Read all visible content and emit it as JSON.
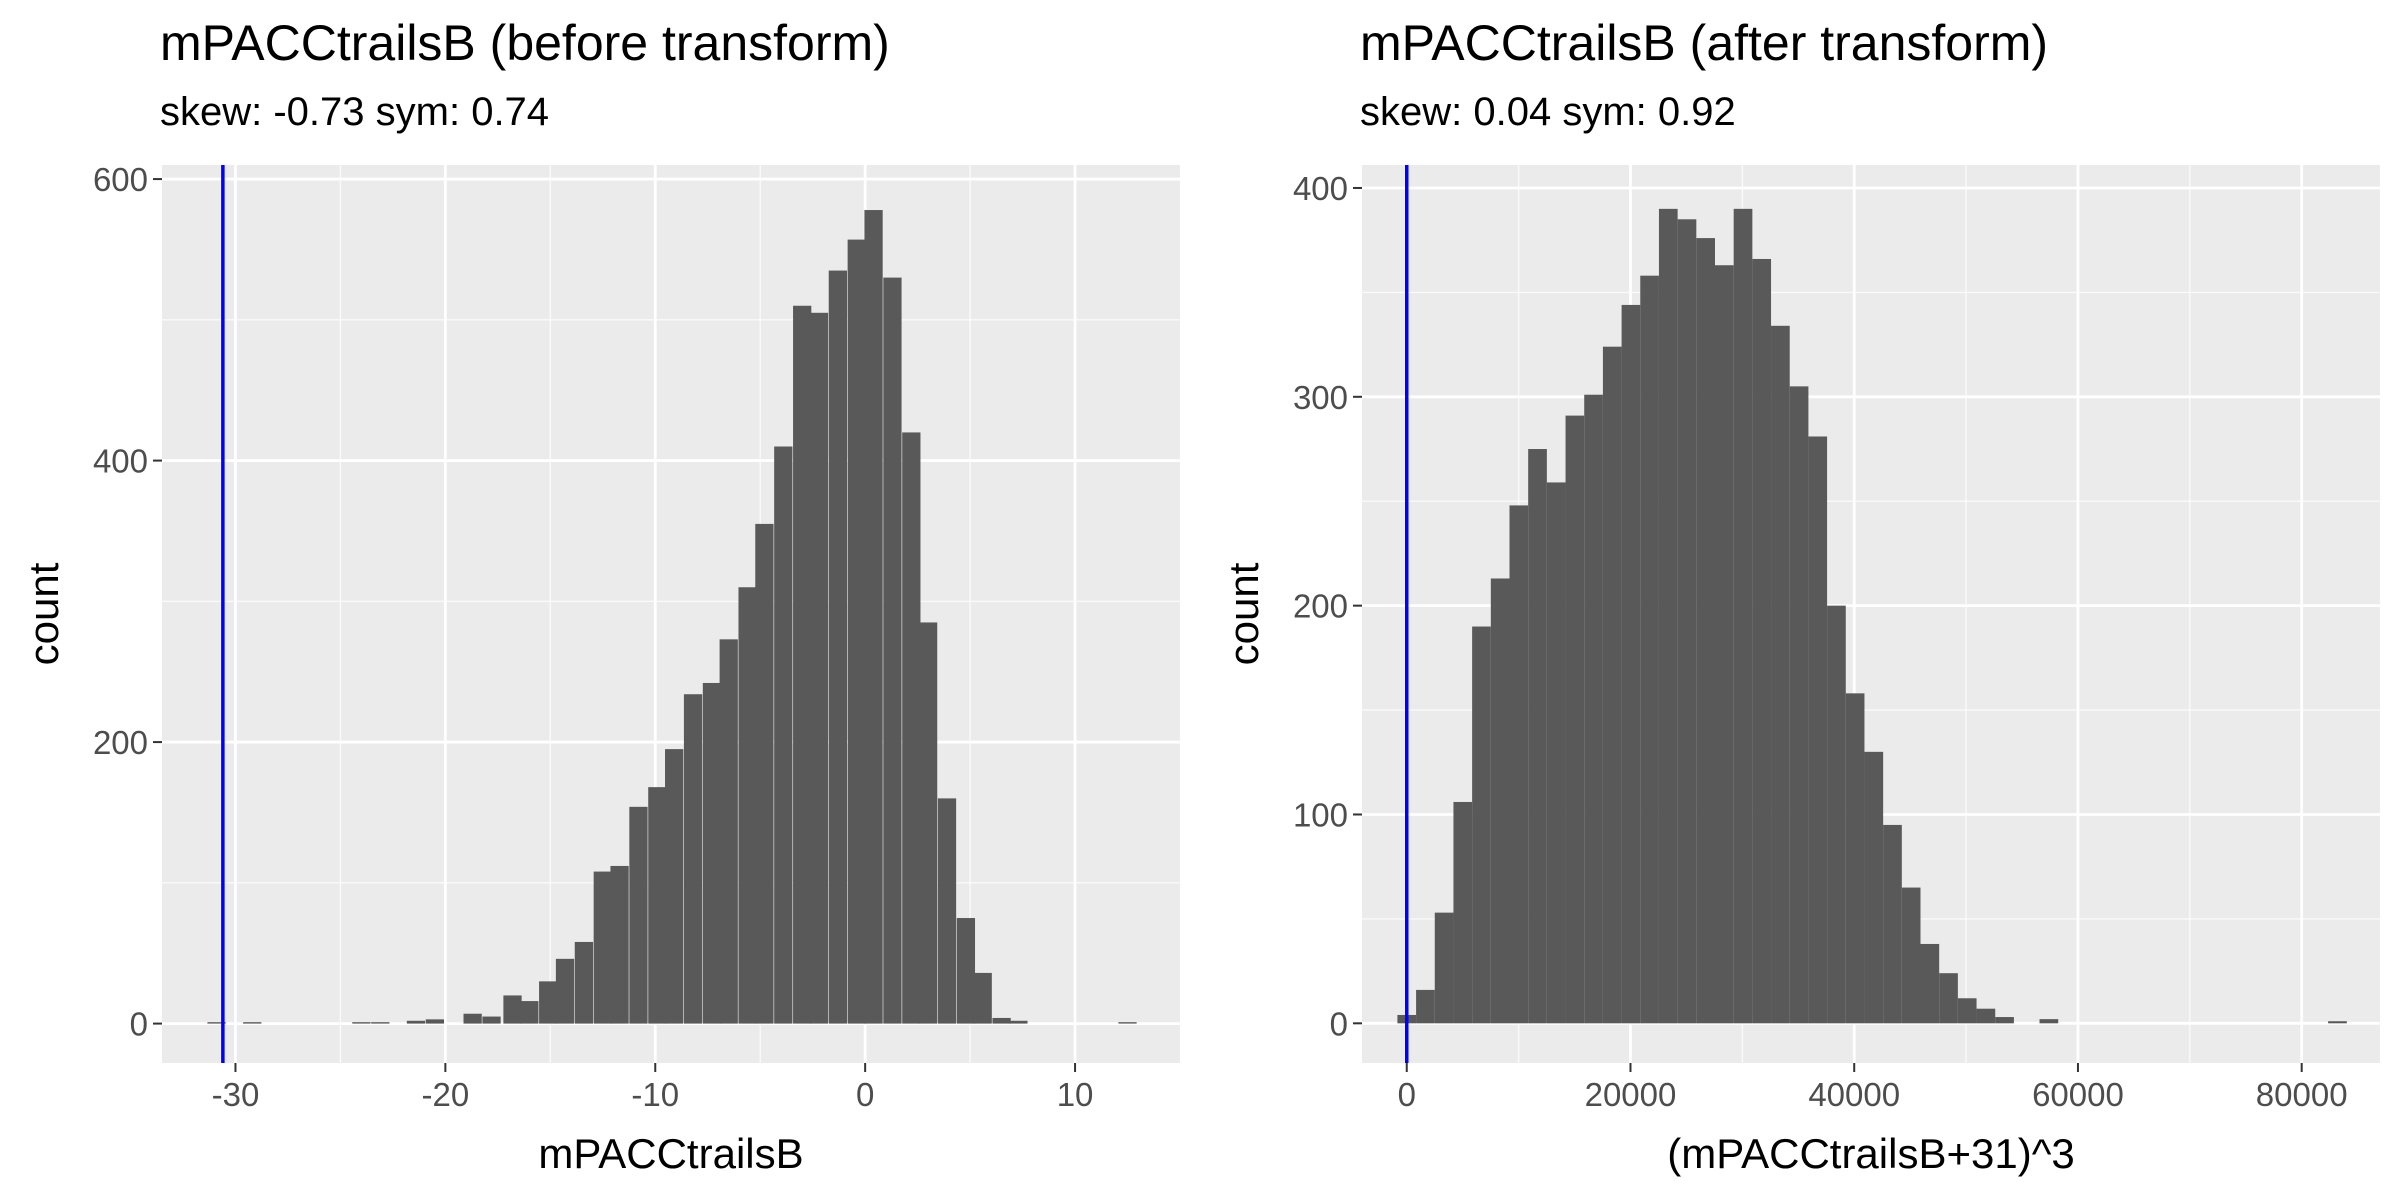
{
  "chart_data": [
    {
      "type": "bar",
      "title": "mPACCtrailsB (before transform)",
      "subtitle": "skew: -0.73 sym: 0.74",
      "xlabel": "mPACCtrailsB",
      "ylabel": "count",
      "xlim": [
        -33.5,
        15
      ],
      "ylim": [
        -28,
        610
      ],
      "x_ticks": [
        -30,
        -20,
        -10,
        0,
        10
      ],
      "x_tick_labels": [
        "-30",
        "-20",
        "-10",
        "0",
        "10"
      ],
      "y_ticks": [
        0,
        200,
        400,
        600
      ],
      "y_tick_labels": [
        "0",
        "200",
        "400",
        "600"
      ],
      "grid": true,
      "bin_width": 0.87,
      "bins": [
        [
          -30.9,
          1
        ],
        [
          -29.2,
          1
        ],
        [
          -24.0,
          1
        ],
        [
          -23.1,
          1
        ],
        [
          -21.4,
          2
        ],
        [
          -20.5,
          3
        ],
        [
          -18.7,
          7
        ],
        [
          -17.8,
          5
        ],
        [
          -16.8,
          20
        ],
        [
          -16.0,
          16
        ],
        [
          -15.1,
          30
        ],
        [
          -14.3,
          46
        ],
        [
          -13.4,
          58
        ],
        [
          -12.5,
          108
        ],
        [
          -11.7,
          112
        ],
        [
          -10.8,
          154
        ],
        [
          -9.9,
          168
        ],
        [
          -9.1,
          195
        ],
        [
          -8.2,
          234
        ],
        [
          -7.3,
          242
        ],
        [
          -6.5,
          273
        ],
        [
          -5.6,
          310
        ],
        [
          -4.8,
          355
        ],
        [
          -3.9,
          410
        ],
        [
          -3.0,
          510
        ],
        [
          -2.2,
          505
        ],
        [
          -1.3,
          535
        ],
        [
          -0.4,
          557
        ],
        [
          0.4,
          578
        ],
        [
          1.3,
          530
        ],
        [
          2.2,
          420
        ],
        [
          3.0,
          285
        ],
        [
          3.9,
          160
        ],
        [
          4.8,
          75
        ],
        [
          5.6,
          36
        ],
        [
          6.5,
          4
        ],
        [
          7.3,
          2
        ],
        [
          12.5,
          1
        ]
      ],
      "vline": {
        "x": -30.6,
        "color": "#0000ff"
      }
    },
    {
      "type": "bar",
      "title": "mPACCtrailsB (after transform)",
      "subtitle": "skew: 0.04 sym: 0.92",
      "xlabel": "(mPACCtrailsB+31)^3",
      "ylabel": "count",
      "xlim": [
        -4000,
        87000
      ],
      "ylim": [
        -19,
        411
      ],
      "x_ticks": [
        0,
        20000,
        40000,
        60000,
        80000
      ],
      "x_tick_labels": [
        "0",
        "20000",
        "40000",
        "60000",
        "80000"
      ],
      "y_ticks": [
        0,
        100,
        200,
        300,
        400
      ],
      "y_tick_labels": [
        "0",
        "100",
        "200",
        "300",
        "400"
      ],
      "grid": true,
      "bin_width": 1670,
      "bins": [
        [
          0,
          4
        ],
        [
          1670,
          16
        ],
        [
          3340,
          53
        ],
        [
          5010,
          106
        ],
        [
          6680,
          190
        ],
        [
          8350,
          213
        ],
        [
          10020,
          248
        ],
        [
          11690,
          275
        ],
        [
          13360,
          259
        ],
        [
          15030,
          291
        ],
        [
          16700,
          301
        ],
        [
          18370,
          324
        ],
        [
          20040,
          344
        ],
        [
          21710,
          358
        ],
        [
          23380,
          390
        ],
        [
          25050,
          385
        ],
        [
          26720,
          376
        ],
        [
          28390,
          363
        ],
        [
          30060,
          390
        ],
        [
          31730,
          366
        ],
        [
          33400,
          334
        ],
        [
          35070,
          305
        ],
        [
          36740,
          281
        ],
        [
          38410,
          200
        ],
        [
          40080,
          158
        ],
        [
          41750,
          130
        ],
        [
          43420,
          95
        ],
        [
          45090,
          65
        ],
        [
          46760,
          38
        ],
        [
          48430,
          24
        ],
        [
          50100,
          12
        ],
        [
          51770,
          7
        ],
        [
          53440,
          3
        ],
        [
          57400,
          2
        ],
        [
          83200,
          1
        ]
      ],
      "vline": {
        "x": 0,
        "color": "#0000ff"
      }
    }
  ],
  "colors": {
    "panel_background": "#ebebeb",
    "grid_major": "#ffffff",
    "bar_fill": "#595959",
    "tick_text": "#4d4d4d",
    "tick_mark": "#333333"
  }
}
